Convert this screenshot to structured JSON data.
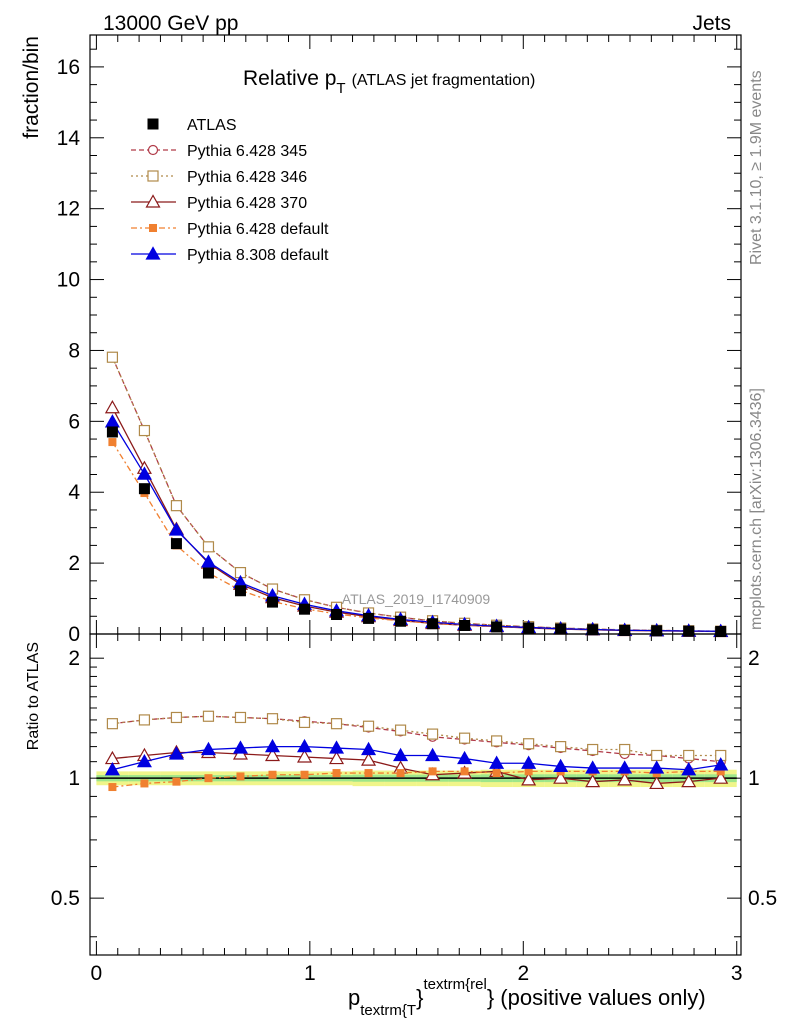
{
  "header": {
    "left": "13000 GeV pp",
    "right": "Jets"
  },
  "side_labels": {
    "top": "Rivet 3.1.10, ≥ 1.9M events",
    "bottom": "mcplots.cern.ch [arXiv:1306.3436]"
  },
  "chart_data": {
    "type": "line",
    "title_main": "Relative p",
    "title_sub": "T",
    "title_rest": "(ATLAS jet fragmentation)",
    "watermark": "ATLAS_2019_I1740909",
    "xlabel": {
      "p": "p",
      "sub": "textrm{T",
      "brace": "}",
      "sup": "textrm{rel",
      "rest": "} (positive values only)"
    },
    "ylabel": "fraction/bin",
    "ratio_ylabel": "Ratio to ATLAS",
    "xlim": [
      -0.03,
      3.02
    ],
    "ylim": [
      0,
      16.9
    ],
    "ratio_ylim": [
      0.36,
      2.3
    ],
    "x_ticks": [
      "0",
      "1",
      "2",
      "3"
    ],
    "y_ticks": [
      "0",
      "2",
      "4",
      "6",
      "8",
      "10",
      "12",
      "14",
      "16"
    ],
    "ratio_ticks": [
      "0.5",
      "1",
      "2"
    ],
    "x": [
      0.075,
      0.225,
      0.375,
      0.525,
      0.675,
      0.825,
      0.975,
      1.125,
      1.275,
      1.425,
      1.575,
      1.725,
      1.875,
      2.025,
      2.175,
      2.325,
      2.475,
      2.625,
      2.775,
      2.925
    ],
    "data": {
      "name": "ATLAS",
      "values": [
        5.7,
        4.1,
        2.55,
        1.72,
        1.22,
        0.9,
        0.7,
        0.55,
        0.44,
        0.36,
        0.29,
        0.24,
        0.2,
        0.17,
        0.14,
        0.12,
        0.1,
        0.09,
        0.08,
        0.07
      ],
      "band_halfwidth": [
        0.04,
        0.04,
        0.04,
        0.04,
        0.04,
        0.04,
        0.04,
        0.04,
        0.045,
        0.045,
        0.045,
        0.045,
        0.05,
        0.05,
        0.05,
        0.05,
        0.05,
        0.05,
        0.05,
        0.05
      ]
    },
    "series": [
      {
        "name": "Pythia 6.428 345",
        "color": "#b03a48",
        "dash": "5,3",
        "marker": "circle-open",
        "ratio": [
          1.37,
          1.4,
          1.42,
          1.43,
          1.42,
          1.41,
          1.39,
          1.37,
          1.34,
          1.31,
          1.27,
          1.25,
          1.23,
          1.21,
          1.19,
          1.17,
          1.15,
          1.14,
          1.12,
          1.1
        ]
      },
      {
        "name": "Pythia 6.428 346",
        "color": "#b08a4a",
        "dash": "2,3",
        "marker": "square-open",
        "ratio": [
          1.37,
          1.4,
          1.42,
          1.43,
          1.42,
          1.41,
          1.38,
          1.37,
          1.35,
          1.32,
          1.29,
          1.26,
          1.24,
          1.22,
          1.2,
          1.18,
          1.18,
          1.14,
          1.14,
          1.14
        ]
      },
      {
        "name": "Pythia 6.428 370",
        "color": "#8b1a1a",
        "dash": "",
        "marker": "triangle-open",
        "ratio": [
          1.12,
          1.14,
          1.16,
          1.16,
          1.15,
          1.14,
          1.13,
          1.12,
          1.11,
          1.06,
          1.02,
          1.03,
          1.04,
          0.99,
          1.0,
          0.98,
          0.99,
          0.97,
          0.98,
          1.0
        ]
      },
      {
        "name": "Pythia 6.428 default",
        "color": "#f08030",
        "dash": "6,3,2,3",
        "marker": "square-filled",
        "ratio": [
          0.95,
          0.97,
          0.98,
          1.0,
          1.01,
          1.02,
          1.02,
          1.03,
          1.03,
          1.03,
          1.04,
          1.04,
          1.03,
          1.04,
          1.04,
          1.04,
          1.04,
          1.03,
          1.04,
          1.04
        ]
      },
      {
        "name": "Pythia 8.308 default",
        "color": "#0000e0",
        "dash": "",
        "marker": "triangle-filled",
        "ratio": [
          1.05,
          1.1,
          1.15,
          1.18,
          1.19,
          1.2,
          1.2,
          1.19,
          1.18,
          1.14,
          1.14,
          1.12,
          1.09,
          1.09,
          1.07,
          1.06,
          1.06,
          1.06,
          1.05,
          1.08
        ]
      }
    ]
  }
}
